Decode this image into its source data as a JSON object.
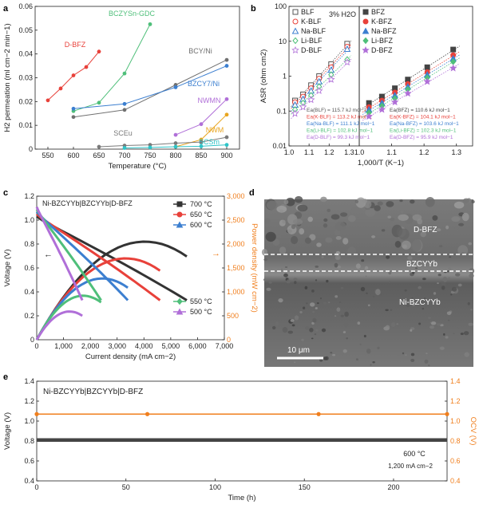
{
  "chart_data": [
    {
      "panel": "a",
      "type": "line",
      "xlabel": "Temperature (°C)",
      "ylabel": "H2 permeation (ml cm−2 min−1)",
      "xlim": [
        525,
        925
      ],
      "ylim": [
        0,
        0.06
      ],
      "xticks": [
        550,
        600,
        650,
        700,
        750,
        800,
        850,
        900
      ],
      "yticks": [
        0,
        0.01,
        0.02,
        0.03,
        0.04,
        0.05,
        0.06
      ],
      "series": [
        {
          "name": "D-BFZ",
          "color": "#e8413a",
          "x": [
            550,
            575,
            600,
            625,
            650
          ],
          "y": [
            0.0205,
            0.0255,
            0.031,
            0.0345,
            0.041
          ]
        },
        {
          "name": "BCZYSn-GDC",
          "color": "#4fbf7a",
          "x": [
            600,
            650,
            700,
            750
          ],
          "y": [
            0.016,
            0.0195,
            0.0318,
            0.0525
          ]
        },
        {
          "name": "BCY/Ni",
          "color": "#707070",
          "x": [
            600,
            700,
            800,
            900
          ],
          "y": [
            0.0135,
            0.0165,
            0.027,
            0.0375
          ]
        },
        {
          "name": "BZCY7/Ni",
          "color": "#3c7fd0",
          "x": [
            600,
            700,
            800,
            900
          ],
          "y": [
            0.017,
            0.019,
            0.026,
            0.035
          ]
        },
        {
          "name": "NWMN",
          "color": "#b06fd8",
          "x": [
            800,
            850,
            900
          ],
          "y": [
            0.006,
            0.0105,
            0.021
          ]
        },
        {
          "name": "NWM",
          "color": "#e8a51f",
          "x": [
            800,
            850,
            900
          ],
          "y": [
            0.001,
            0.004,
            0.0145
          ]
        },
        {
          "name": "SCEu",
          "color": "#7a7a7a",
          "x": [
            650,
            700,
            750,
            800,
            850,
            900
          ],
          "y": [
            0.001,
            0.0015,
            0.0018,
            0.0025,
            0.003,
            0.005
          ]
        },
        {
          "name": "SCSm",
          "color": "#2ec4c8",
          "x": [
            700,
            750,
            800,
            850,
            900
          ],
          "y": [
            0.0005,
            0.0007,
            0.001,
            0.0012,
            0.0018
          ]
        }
      ]
    },
    {
      "panel": "b",
      "type": "scatter",
      "note": "3% H2O",
      "xlabel": "1,000/T (K−1)",
      "ylabel": "ASR (ohm cm2)",
      "yscale": "log",
      "ylim": [
        0.01,
        100
      ],
      "xlim": [
        1.0,
        1.35
      ],
      "xticks": [
        1.0,
        1.1,
        1.2,
        1.3
      ],
      "yticks": [
        "0.01",
        "0.1",
        "1",
        "10",
        "100"
      ],
      "x": [
        1.03,
        1.07,
        1.11,
        1.15,
        1.21,
        1.29
      ],
      "left_series": [
        {
          "name": "BLF",
          "marker": "square-open",
          "color": "#555555",
          "y": [
            0.2,
            0.3,
            0.55,
            1.0,
            2.2,
            8.5
          ],
          "ea": "115.7"
        },
        {
          "name": "K-BLF",
          "marker": "circle-open",
          "color": "#e8413a",
          "y": [
            0.18,
            0.26,
            0.45,
            0.85,
            1.8,
            7.0
          ],
          "ea": "113.2"
        },
        {
          "name": "Na-BLF",
          "marker": "triangle-open",
          "color": "#3c7fd0",
          "y": [
            0.15,
            0.22,
            0.38,
            0.7,
            1.5,
            6.0
          ],
          "ea": "111.1"
        },
        {
          "name": "Li-BLF",
          "marker": "diamond-open",
          "color": "#4fbf7a",
          "y": [
            0.11,
            0.17,
            0.28,
            0.5,
            1.1,
            3.0
          ],
          "ea": "102.8"
        },
        {
          "name": "D-BLF",
          "marker": "star-open",
          "color": "#b06fd8",
          "y": [
            0.085,
            0.13,
            0.21,
            0.38,
            0.8,
            2.5
          ],
          "ea": "99.3"
        }
      ],
      "right_series": [
        {
          "name": "BFZ",
          "marker": "square",
          "color": "#444444",
          "y": [
            0.17,
            0.26,
            0.45,
            0.8,
            1.8,
            5.8
          ],
          "ea": "110.6"
        },
        {
          "name": "K-BFZ",
          "marker": "circle",
          "color": "#e8413a",
          "y": [
            0.13,
            0.2,
            0.34,
            0.6,
            1.3,
            4.0
          ],
          "ea": "104.1"
        },
        {
          "name": "Na-BFZ",
          "marker": "triangle",
          "color": "#3c7fd0",
          "y": [
            0.11,
            0.17,
            0.28,
            0.5,
            1.1,
            3.2
          ],
          "ea": "103.6"
        },
        {
          "name": "Li-BFZ",
          "marker": "diamond",
          "color": "#4fbf7a",
          "y": [
            0.09,
            0.14,
            0.23,
            0.42,
            0.9,
            2.6
          ],
          "ea": "102.3"
        },
        {
          "name": "D-BFZ",
          "marker": "star",
          "color": "#b06fd8",
          "y": [
            0.07,
            0.11,
            0.18,
            0.32,
            0.7,
            1.7
          ],
          "ea": "95.9"
        }
      ],
      "ea_prefix": "Ea(",
      "ea_suffix": ") = ",
      "ea_unit": " kJ mol−1"
    },
    {
      "panel": "c",
      "type": "line",
      "title": "Ni-BZCYYb|BZCYYb|D-BFZ",
      "xlabel": "Current density (mA cm−2)",
      "ylabel_left": "Voltage (V)",
      "ylabel_right": "Power density (mW cm−2)",
      "xlim": [
        0,
        7000
      ],
      "ylim_left": [
        0,
        1.2
      ],
      "ylim_right": [
        0,
        3000
      ],
      "xticks": [
        0,
        1000,
        2000,
        3000,
        4000,
        5000,
        6000,
        7000
      ],
      "xticklabels": [
        "0",
        "1,000",
        "2,000",
        "3,000",
        "4,000",
        "5,000",
        "6,000",
        "7,000"
      ],
      "yticks_left": [
        "0",
        "0.2",
        "0.4",
        "0.6",
        "0.8",
        "1.0",
        "1.2"
      ],
      "yticks_right": [
        "0",
        "500",
        "1,000",
        "1,500",
        "2,000",
        "2,500",
        "3,000"
      ],
      "series": [
        {
          "name": "700 °C",
          "color": "#333333",
          "ocv": 1.03,
          "vmin": 0.33,
          "imax": 5600,
          "pmax": 2050
        },
        {
          "name": "650 °C",
          "color": "#e8413a",
          "ocv": 1.05,
          "vmin": 0.33,
          "imax": 4600,
          "pmax": 1700
        },
        {
          "name": "600 °C",
          "color": "#3c7fd0",
          "ocv": 1.07,
          "vmin": 0.33,
          "imax": 3400,
          "pmax": 1280
        },
        {
          "name": "550 °C",
          "color": "#4fbf7a",
          "ocv": 1.09,
          "vmin": 0.33,
          "imax": 2400,
          "pmax": 920
        },
        {
          "name": "500 °C",
          "color": "#b06fd8",
          "ocv": 1.11,
          "vmin": 0.33,
          "imax": 1700,
          "pmax": 590
        }
      ]
    },
    {
      "panel": "e",
      "type": "line",
      "title": "Ni-BZCYYb|BZCYYb|D-BFZ",
      "xlabel": "Time (h)",
      "ylabel_left": "Voltage (V)",
      "ylabel_right": "OCV (V)",
      "xlim": [
        0,
        230
      ],
      "ylim": [
        0.4,
        1.4
      ],
      "xticks": [
        0,
        50,
        100,
        150,
        200
      ],
      "yticks": [
        "0.4",
        "0.6",
        "0.8",
        "1.0",
        "1.2",
        "1.4"
      ],
      "annotation_1": "600 °C",
      "annotation_2": "1,200 mA cm−2",
      "series": [
        {
          "name": "Voltage",
          "color": "#444444",
          "value": 0.81
        },
        {
          "name": "OCV",
          "color": "#f07f1e",
          "value": 1.07,
          "markers_x": [
            0,
            62,
            158,
            230
          ]
        }
      ]
    }
  ],
  "panel_d": {
    "label_top": "D-BFZ",
    "label_mid": "BZCYYb",
    "label_bottom": "Ni-BZCYYb",
    "scale_bar": "10 μm"
  },
  "letters": {
    "a": "a",
    "b": "b",
    "c": "c",
    "d": "d",
    "e": "e"
  }
}
